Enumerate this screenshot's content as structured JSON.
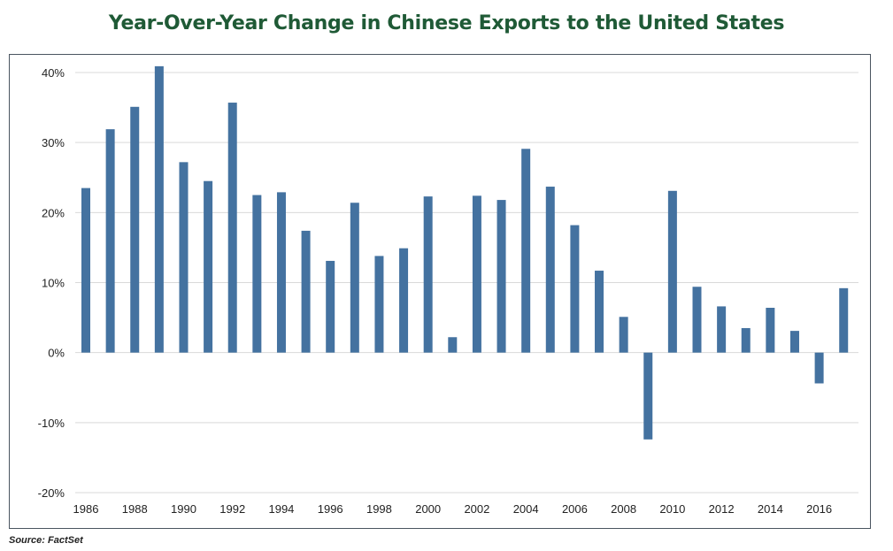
{
  "chart_data": {
    "type": "bar",
    "title": "Year-Over-Year Change in Chinese Exports to the United States",
    "xlabel": "",
    "ylabel": "",
    "ylim": [
      -20,
      40
    ],
    "yticks": [
      "40%",
      "30%",
      "20%",
      "10%",
      "0%",
      "-10%",
      "-20%"
    ],
    "ytick_values": [
      40,
      30,
      20,
      10,
      0,
      -10,
      -20
    ],
    "xtick_labels": [
      "1986",
      "1988",
      "1990",
      "1992",
      "1994",
      "1996",
      "1998",
      "2000",
      "2002",
      "2004",
      "2006",
      "2008",
      "2010",
      "2012",
      "2014",
      "2016"
    ],
    "grid": true,
    "bar_color": "#4472a0",
    "categories": [
      "1986",
      "1987",
      "1988",
      "1989",
      "1990",
      "1991",
      "1992",
      "1993",
      "1994",
      "1995",
      "1996",
      "1997",
      "1998",
      "1999",
      "2000",
      "2001",
      "2002",
      "2003",
      "2004",
      "2005",
      "2006",
      "2007",
      "2008",
      "2009",
      "2010",
      "2011",
      "2012",
      "2013",
      "2014",
      "2015",
      "2016",
      "2017"
    ],
    "values": [
      23.5,
      31.9,
      35.1,
      40.9,
      27.2,
      24.5,
      35.7,
      22.5,
      22.9,
      17.4,
      13.1,
      21.4,
      13.8,
      14.9,
      22.3,
      2.2,
      22.4,
      21.8,
      29.1,
      23.7,
      18.2,
      11.7,
      5.1,
      -12.4,
      23.1,
      9.4,
      6.6,
      3.5,
      6.4,
      3.1,
      -4.4,
      9.2
    ]
  },
  "source": "Source: FactSet"
}
